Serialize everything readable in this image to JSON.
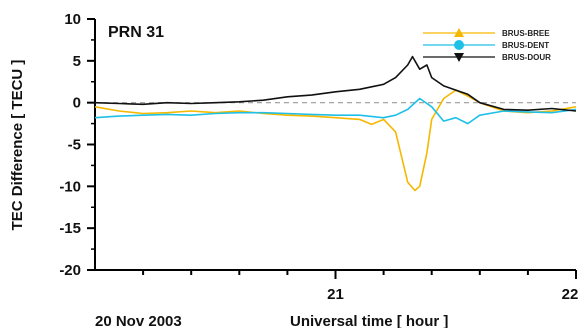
{
  "chart_data": {
    "type": "line",
    "title": "",
    "annotation": "PRN 31",
    "xlabel": "Universal time  [ hour ]",
    "date_label": "20 Nov 2003",
    "ylabel": "TEC  Difference  [ TECU ]",
    "xlim": [
      20.0,
      22.0
    ],
    "ylim": [
      -20,
      10
    ],
    "x_ticks": [
      21,
      22
    ],
    "x_tick_labels": [
      "21",
      "22"
    ],
    "y_ticks": [
      10,
      5,
      0,
      -5,
      -10,
      -15,
      -20
    ],
    "y_tick_labels": [
      "10",
      "5",
      "0",
      "-5",
      "-10",
      "-15",
      "-20"
    ],
    "reference_line": 0,
    "grid": false,
    "legend_position": "top-right",
    "series": [
      {
        "name": "BRUS-BREE",
        "color": "#f5b800",
        "marker": "triangle-up",
        "x": [
          20.0,
          20.1,
          20.2,
          20.3,
          20.4,
          20.5,
          20.6,
          20.7,
          20.8,
          20.9,
          21.0,
          21.1,
          21.15,
          21.2,
          21.25,
          21.3,
          21.33,
          21.35,
          21.38,
          21.4,
          21.45,
          21.5,
          21.55,
          21.6,
          21.7,
          21.8,
          21.9,
          22.0
        ],
        "y": [
          -0.5,
          -1.0,
          -1.3,
          -1.2,
          -1.0,
          -1.2,
          -1.0,
          -1.3,
          -1.5,
          -1.6,
          -1.8,
          -2.0,
          -2.6,
          -2.0,
          -3.5,
          -9.5,
          -10.5,
          -10.0,
          -6.0,
          -2.0,
          0.5,
          1.5,
          0.8,
          0.0,
          -1.0,
          -1.2,
          -1.0,
          -0.5
        ]
      },
      {
        "name": "BRUS-DENT",
        "color": "#1ec0e8",
        "marker": "circle",
        "x": [
          20.0,
          20.1,
          20.2,
          20.3,
          20.4,
          20.5,
          20.6,
          20.7,
          20.8,
          20.9,
          21.0,
          21.1,
          21.2,
          21.25,
          21.3,
          21.35,
          21.4,
          21.45,
          21.5,
          21.55,
          21.6,
          21.7,
          21.8,
          21.9,
          22.0
        ],
        "y": [
          -1.8,
          -1.6,
          -1.5,
          -1.4,
          -1.5,
          -1.3,
          -1.2,
          -1.2,
          -1.3,
          -1.4,
          -1.5,
          -1.5,
          -1.8,
          -1.5,
          -0.8,
          0.5,
          -0.5,
          -2.2,
          -1.8,
          -2.5,
          -1.5,
          -1.0,
          -1.1,
          -1.2,
          -0.8
        ]
      },
      {
        "name": "BRUS-DOUR",
        "color": "#111111",
        "marker": "triangle-down",
        "x": [
          20.0,
          20.1,
          20.2,
          20.3,
          20.4,
          20.5,
          20.6,
          20.7,
          20.8,
          20.9,
          21.0,
          21.1,
          21.15,
          21.2,
          21.25,
          21.3,
          21.32,
          21.35,
          21.38,
          21.4,
          21.45,
          21.5,
          21.55,
          21.6,
          21.7,
          21.8,
          21.9,
          22.0
        ],
        "y": [
          0.0,
          -0.1,
          -0.2,
          0.0,
          -0.1,
          0.0,
          0.1,
          0.3,
          0.7,
          0.9,
          1.3,
          1.6,
          1.9,
          2.2,
          3.0,
          4.5,
          5.5,
          4.0,
          4.5,
          3.0,
          2.0,
          1.5,
          1.0,
          0.0,
          -0.8,
          -0.9,
          -0.7,
          -1.0
        ]
      }
    ]
  }
}
